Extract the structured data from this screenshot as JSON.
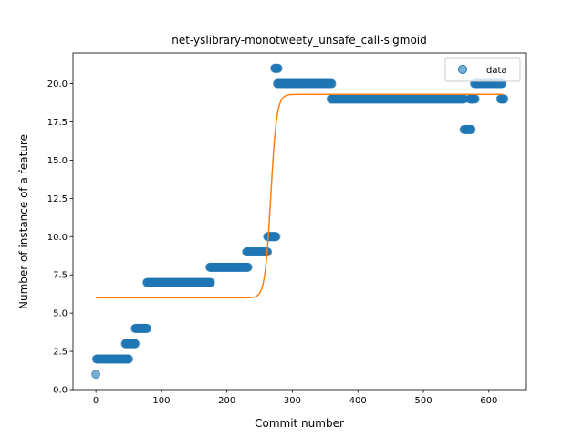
{
  "chart_data": {
    "type": "scatter",
    "title": "net-yslibrary-monotweety_unsafe_call-sigmoid",
    "xlabel": "Commit number",
    "ylabel": "Number of instance of a feature",
    "xlim": [
      -35,
      656
    ],
    "ylim": [
      0,
      22
    ],
    "xticks": [
      0,
      100,
      200,
      300,
      400,
      500,
      600
    ],
    "yticks": [
      0.0,
      2.5,
      5.0,
      7.5,
      10.0,
      12.5,
      15.0,
      17.5,
      20.0
    ],
    "xtick_labels": [
      "0",
      "100",
      "200",
      "300",
      "400",
      "500",
      "600"
    ],
    "ytick_labels": [
      "0.0",
      "2.5",
      "5.0",
      "7.5",
      "10.0",
      "12.5",
      "15.0",
      "17.5",
      "20.0"
    ],
    "grid": false,
    "legend": {
      "placement": "top-right",
      "entries": [
        "data"
      ]
    },
    "series": [
      {
        "name": "data",
        "kind": "scatter",
        "color": "#1f77b4",
        "alpha": 0.6,
        "segments": [
          {
            "x_start": 0,
            "x_end": 0,
            "y": 1
          },
          {
            "x_start": 1,
            "x_end": 50,
            "y": 2
          },
          {
            "x_start": 45,
            "x_end": 60,
            "y": 3
          },
          {
            "x_start": 60,
            "x_end": 78,
            "y": 4
          },
          {
            "x_start": 78,
            "x_end": 175,
            "y": 7
          },
          {
            "x_start": 174,
            "x_end": 232,
            "y": 8
          },
          {
            "x_start": 230,
            "x_end": 262,
            "y": 9
          },
          {
            "x_start": 262,
            "x_end": 275,
            "y": 10
          },
          {
            "x_start": 273,
            "x_end": 278,
            "y": 21
          },
          {
            "x_start": 277,
            "x_end": 360,
            "y": 20
          },
          {
            "x_start": 359,
            "x_end": 562,
            "y": 19
          },
          {
            "x_start": 562,
            "x_end": 573,
            "y": 17
          },
          {
            "x_start": 571,
            "x_end": 579,
            "y": 19
          },
          {
            "x_start": 578,
            "x_end": 620,
            "y": 20
          },
          {
            "x_start": 618,
            "x_end": 623,
            "y": 19
          }
        ]
      },
      {
        "kind": "line",
        "color": "#ff7f0e",
        "fit": {
          "low": 6.0,
          "high": 19.3,
          "midpoint": 267,
          "steepness": 0.22,
          "x_start": 0,
          "x_end": 622
        }
      }
    ]
  }
}
